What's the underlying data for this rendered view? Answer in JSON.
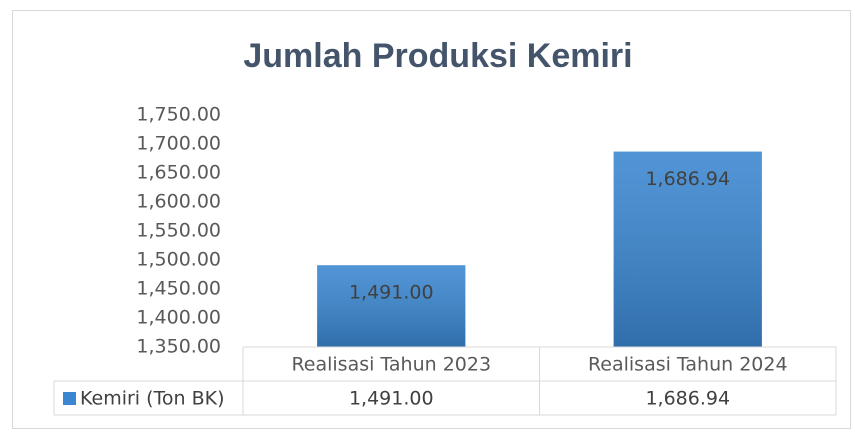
{
  "chart_data": {
    "type": "bar",
    "title": "Jumlah Produksi Kemiri",
    "categories": [
      "Realisasi Tahun 2023",
      "Realisasi Tahun 2024"
    ],
    "series": [
      {
        "name": "Kemiri (Ton BK)",
        "color": "#3a86d0",
        "values": [
          1491.0,
          1686.94
        ],
        "value_labels": [
          "1,491.00",
          "1,686.94"
        ]
      }
    ],
    "ylim": [
      1350,
      1750
    ],
    "yticks": [
      {
        "value": 1350,
        "label": "1,350.00"
      },
      {
        "value": 1400,
        "label": "1,400.00"
      },
      {
        "value": 1450,
        "label": "1,450.00"
      },
      {
        "value": 1500,
        "label": "1,500.00"
      },
      {
        "value": 1550,
        "label": "1,550.00"
      },
      {
        "value": 1600,
        "label": "1,600.00"
      },
      {
        "value": 1650,
        "label": "1,650.00"
      },
      {
        "value": 1700,
        "label": "1,700.00"
      },
      {
        "value": 1750,
        "label": "1,750.00"
      }
    ],
    "grid": false,
    "data_table": true
  }
}
